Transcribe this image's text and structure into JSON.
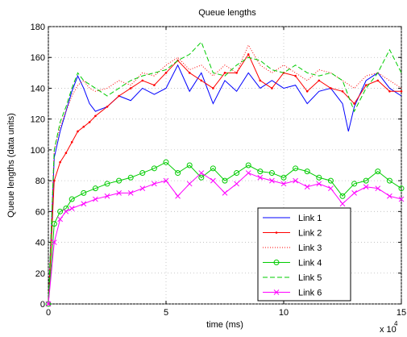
{
  "chart_data": {
    "type": "line",
    "title": "Queue lengths",
    "xlabel": "time (ms)",
    "ylabel": "Queue lengths (data units)",
    "x_multiplier_label": "x 10",
    "x_multiplier_exponent": "4",
    "xlim": [
      0,
      15
    ],
    "ylim": [
      0,
      180
    ],
    "x_ticks": [
      0,
      5,
      10,
      15
    ],
    "y_ticks": [
      0,
      20,
      40,
      60,
      80,
      100,
      120,
      140,
      160,
      180
    ],
    "x_tick_labels": [
      "0",
      "5",
      "10",
      "15"
    ],
    "y_tick_labels": [
      "0",
      "20",
      "40",
      "60",
      "80",
      "100",
      "120",
      "140",
      "160",
      "180"
    ],
    "grid": true,
    "legend_position": "bottom-right",
    "series": [
      {
        "name": "Link 1",
        "color": "#0000ff",
        "style": "solid",
        "marker": "none",
        "x": [
          0,
          0.25,
          0.5,
          0.75,
          1.0,
          1.25,
          1.5,
          1.75,
          2.0,
          2.5,
          3.0,
          3.5,
          4.0,
          4.5,
          5.0,
          5.5,
          6.0,
          6.5,
          7.0,
          7.5,
          8.0,
          8.5,
          9.0,
          9.5,
          10.0,
          10.5,
          11.0,
          11.5,
          12.0,
          12.5,
          12.75,
          13.0,
          13.5,
          14.0,
          14.5,
          15.0
        ],
        "y": [
          0,
          95,
          112,
          125,
          138,
          148,
          140,
          130,
          125,
          128,
          135,
          132,
          140,
          136,
          140,
          155,
          138,
          150,
          130,
          145,
          138,
          150,
          140,
          145,
          140,
          142,
          130,
          138,
          140,
          130,
          112,
          128,
          145,
          150,
          140,
          135
        ]
      },
      {
        "name": "Link 2",
        "color": "#ff0000",
        "style": "solid",
        "marker": "point",
        "x": [
          0,
          0.25,
          0.5,
          0.75,
          1.0,
          1.25,
          1.5,
          1.75,
          2.0,
          2.5,
          3.0,
          3.5,
          4.0,
          4.5,
          5.0,
          5.5,
          6.0,
          6.5,
          7.0,
          7.5,
          8.0,
          8.5,
          9.0,
          9.5,
          10.0,
          10.5,
          11.0,
          11.5,
          12.0,
          12.5,
          13.0,
          13.5,
          14.0,
          14.5,
          15.0
        ],
        "y": [
          0,
          80,
          92,
          98,
          105,
          112,
          115,
          118,
          122,
          128,
          135,
          140,
          145,
          142,
          150,
          158,
          150,
          145,
          140,
          150,
          150,
          162,
          145,
          140,
          150,
          148,
          138,
          145,
          140,
          138,
          130,
          142,
          145,
          138,
          138
        ]
      },
      {
        "name": "Link 3",
        "color": "#ff0000",
        "style": "dotted",
        "marker": "none",
        "x": [
          0,
          0.25,
          0.5,
          0.75,
          1.0,
          1.25,
          1.5,
          1.75,
          2.0,
          2.5,
          3.0,
          3.5,
          4.0,
          4.5,
          5.0,
          5.5,
          6.0,
          6.5,
          7.0,
          7.5,
          8.0,
          8.5,
          9.0,
          9.5,
          10.0,
          10.5,
          11.0,
          11.5,
          12.0,
          12.5,
          13.0,
          13.5,
          14.0,
          14.5,
          15.0
        ],
        "y": [
          0,
          100,
          115,
          125,
          135,
          142,
          145,
          140,
          138,
          140,
          145,
          142,
          150,
          148,
          155,
          160,
          152,
          155,
          148,
          155,
          150,
          168,
          155,
          150,
          155,
          150,
          145,
          152,
          150,
          145,
          140,
          148,
          150,
          145,
          140
        ]
      },
      {
        "name": "Link 4",
        "color": "#00cc00",
        "style": "solid",
        "marker": "circle",
        "x": [
          0,
          0.25,
          0.5,
          0.75,
          1.0,
          1.5,
          2.0,
          2.5,
          3.0,
          3.5,
          4.0,
          4.5,
          5.0,
          5.5,
          6.0,
          6.5,
          7.0,
          7.5,
          8.0,
          8.5,
          9.0,
          9.5,
          10.0,
          10.5,
          11.0,
          11.5,
          12.0,
          12.5,
          13.0,
          13.5,
          14.0,
          14.5,
          15.0
        ],
        "y": [
          0,
          52,
          60,
          62,
          68,
          72,
          75,
          78,
          80,
          82,
          85,
          88,
          92,
          85,
          90,
          82,
          88,
          80,
          85,
          90,
          86,
          85,
          82,
          88,
          86,
          82,
          80,
          70,
          78,
          80,
          86,
          80,
          75
        ]
      },
      {
        "name": "Link 5",
        "color": "#00cc00",
        "style": "dashed",
        "marker": "none",
        "x": [
          0,
          0.25,
          0.5,
          0.75,
          1.0,
          1.25,
          1.5,
          2.0,
          2.5,
          3.0,
          3.5,
          4.0,
          4.5,
          5.0,
          5.5,
          6.0,
          6.5,
          7.0,
          7.5,
          8.0,
          8.5,
          9.0,
          9.5,
          10.0,
          10.5,
          11.0,
          11.5,
          12.0,
          12.5,
          13.0,
          13.5,
          14.0,
          14.5,
          15.0
        ],
        "y": [
          0,
          100,
          118,
          128,
          140,
          150,
          145,
          140,
          135,
          140,
          145,
          148,
          150,
          152,
          158,
          162,
          170,
          150,
          148,
          155,
          160,
          158,
          152,
          150,
          155,
          150,
          148,
          150,
          145,
          125,
          140,
          150,
          165,
          150
        ]
      },
      {
        "name": "Link 6",
        "color": "#ff00ff",
        "style": "solid",
        "marker": "x",
        "x": [
          0,
          0.25,
          0.5,
          0.75,
          1.0,
          1.5,
          2.0,
          2.5,
          3.0,
          3.5,
          4.0,
          4.5,
          5.0,
          5.5,
          6.0,
          6.5,
          7.0,
          7.5,
          8.0,
          8.5,
          9.0,
          9.5,
          10.0,
          10.5,
          11.0,
          11.5,
          12.0,
          12.5,
          13.0,
          13.5,
          14.0,
          14.5,
          15.0
        ],
        "y": [
          0,
          40,
          55,
          60,
          62,
          65,
          68,
          70,
          72,
          72,
          75,
          78,
          80,
          70,
          78,
          85,
          80,
          72,
          78,
          85,
          82,
          80,
          78,
          80,
          76,
          78,
          75,
          65,
          72,
          76,
          75,
          70,
          68
        ]
      }
    ]
  }
}
